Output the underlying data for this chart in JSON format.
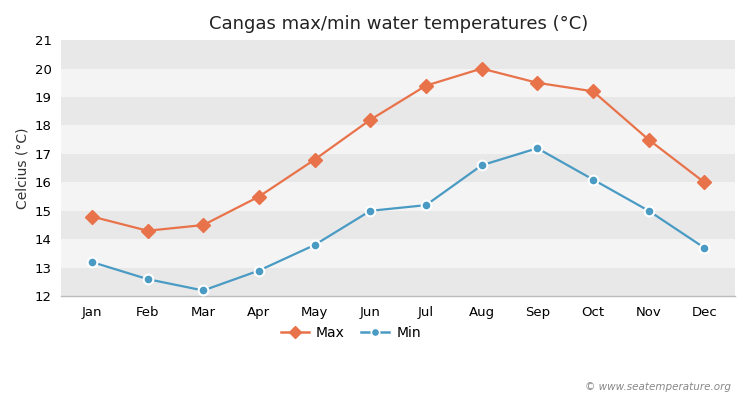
{
  "title": "Cangas max/min water temperatures (°C)",
  "ylabel": "Celcius (°C)",
  "months": [
    "Jan",
    "Feb",
    "Mar",
    "Apr",
    "May",
    "Jun",
    "Jul",
    "Aug",
    "Sep",
    "Oct",
    "Nov",
    "Dec"
  ],
  "max_temps": [
    14.8,
    14.3,
    14.5,
    15.5,
    16.8,
    18.2,
    19.4,
    20.0,
    19.5,
    19.2,
    17.5,
    16.0
  ],
  "min_temps": [
    13.2,
    12.6,
    12.2,
    12.9,
    13.8,
    15.0,
    15.2,
    16.6,
    17.2,
    16.1,
    15.0,
    13.7
  ],
  "max_color": "#e8734a",
  "min_color": "#4a9bc4",
  "bg_color": "#ffffff",
  "plot_bg_color": "#ffffff",
  "band_color_dark": "#e8e8e8",
  "band_color_light": "#f4f4f4",
  "ylim": [
    12,
    21
  ],
  "yticks": [
    12,
    13,
    14,
    15,
    16,
    17,
    18,
    19,
    20,
    21
  ],
  "watermark": "© www.seatemperature.org",
  "legend_labels": [
    "Max",
    "Min"
  ],
  "title_fontsize": 13,
  "label_fontsize": 10,
  "tick_fontsize": 9.5
}
